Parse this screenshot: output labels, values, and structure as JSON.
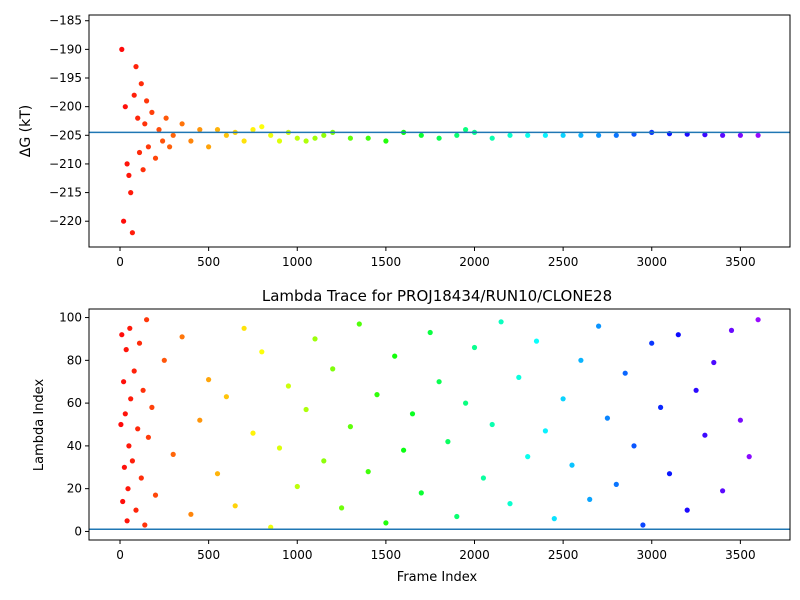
{
  "chart_data": [
    {
      "type": "scatter",
      "title": "",
      "xlabel": "",
      "ylabel": "ΔG (kT)",
      "xlim": [
        -175,
        3780
      ],
      "ylim": [
        -224.5,
        -184
      ],
      "xticks": [
        0,
        500,
        1000,
        1500,
        2000,
        2500,
        3000,
        3500
      ],
      "xtick_labels": [
        "0",
        "500",
        "1000",
        "1500",
        "2000",
        "2500",
        "3000",
        "3500"
      ],
      "yticks": [
        -185,
        -190,
        -195,
        -200,
        -205,
        -210,
        -215,
        -220
      ],
      "ytick_labels": [
        "−185",
        "−190",
        "−195",
        "−200",
        "−205",
        "−210",
        "−215",
        "−220"
      ],
      "hline": {
        "y": -204.5,
        "color": "#1f77b4"
      },
      "colormap": "rainbow (red at first frame → violet at last frame)",
      "series": [
        {
          "x": [
            10,
            20,
            30,
            40,
            50,
            60,
            70,
            80,
            90,
            100,
            110,
            120,
            130,
            140,
            150,
            160,
            180,
            200,
            220,
            240,
            260,
            280,
            300,
            350,
            400,
            450,
            500,
            550,
            600,
            650,
            700,
            750,
            800,
            850,
            900,
            950,
            1000,
            1050,
            1100,
            1150,
            1200,
            1300,
            1400,
            1500,
            1600,
            1700,
            1800,
            1900,
            1950,
            2000,
            2100,
            2200,
            2300,
            2400,
            2500,
            2600,
            2700,
            2800,
            2900,
            3000,
            3100,
            3200,
            3300,
            3400,
            3500,
            3600
          ],
          "y": [
            -190,
            -220,
            -200,
            -210,
            -212,
            -215,
            -222,
            -198,
            -193,
            -202,
            -208,
            -196,
            -211,
            -203,
            -199,
            -207,
            -201,
            -209,
            -204,
            -206,
            -202,
            -207,
            -205,
            -203,
            -206,
            -204,
            -207,
            -204,
            -205,
            -204.5,
            -206,
            -204,
            -203.5,
            -205,
            -206,
            -204.5,
            -205.5,
            -206,
            -205.5,
            -205,
            -204.5,
            -205.5,
            -205.5,
            -206,
            -204.5,
            -205,
            -205.5,
            -205,
            -204,
            -204.5,
            -205.5,
            -205,
            -205,
            -205,
            -205,
            -205,
            -205,
            -205,
            -204.8,
            -204.5,
            -204.7,
            -204.8,
            -204.9,
            -205,
            -205,
            -205
          ]
        }
      ]
    },
    {
      "type": "scatter",
      "title": "Lambda Trace for PROJ18434/RUN10/CLONE28",
      "xlabel": "Frame Index",
      "ylabel": "Lambda Index",
      "xlim": [
        -175,
        3780
      ],
      "ylim": [
        -4,
        104
      ],
      "xticks": [
        0,
        500,
        1000,
        1500,
        2000,
        2500,
        3000,
        3500
      ],
      "xtick_labels": [
        "0",
        "500",
        "1000",
        "1500",
        "2000",
        "2500",
        "3000",
        "3500"
      ],
      "yticks": [
        0,
        20,
        40,
        60,
        80,
        100
      ],
      "ytick_labels": [
        "0",
        "20",
        "40",
        "60",
        "80",
        "100"
      ],
      "hline": {
        "y": 1,
        "color": "#1f77b4"
      },
      "colormap": "rainbow (red at first frame → violet at last frame)",
      "series": [
        {
          "x": [
            5,
            10,
            15,
            20,
            25,
            30,
            35,
            40,
            45,
            50,
            55,
            60,
            70,
            80,
            90,
            100,
            110,
            120,
            130,
            140,
            150,
            160,
            180,
            200,
            250,
            300,
            350,
            400,
            450,
            500,
            550,
            600,
            650,
            700,
            750,
            800,
            850,
            900,
            950,
            1000,
            1050,
            1100,
            1150,
            1200,
            1250,
            1300,
            1350,
            1400,
            1450,
            1500,
            1550,
            1600,
            1650,
            1700,
            1750,
            1800,
            1850,
            1900,
            1950,
            2000,
            2050,
            2100,
            2150,
            2200,
            2250,
            2300,
            2350,
            2400,
            2450,
            2500,
            2550,
            2600,
            2650,
            2700,
            2750,
            2800,
            2850,
            2900,
            2950,
            3000,
            3050,
            3100,
            3150,
            3200,
            3250,
            3300,
            3350,
            3400,
            3450,
            3500,
            3550,
            3600
          ],
          "y": [
            50,
            92,
            14,
            70,
            30,
            55,
            85,
            5,
            20,
            40,
            95,
            62,
            33,
            75,
            10,
            48,
            88,
            25,
            66,
            3,
            99,
            44,
            58,
            17,
            80,
            36,
            91,
            8,
            52,
            71,
            27,
            63,
            12,
            95,
            46,
            84,
            2,
            39,
            68,
            21,
            57,
            90,
            33,
            76,
            11,
            49,
            97,
            28,
            64,
            4,
            82,
            38,
            55,
            18,
            93,
            70,
            42,
            7,
            60,
            86,
            25,
            50,
            98,
            13,
            72,
            35,
            89,
            47,
            6,
            62,
            31,
            80,
            15,
            96,
            53,
            22,
            74,
            40,
            3,
            88,
            58,
            27,
            92,
            10,
            66,
            45,
            79,
            19,
            94,
            52,
            35,
            99
          ]
        }
      ]
    }
  ]
}
